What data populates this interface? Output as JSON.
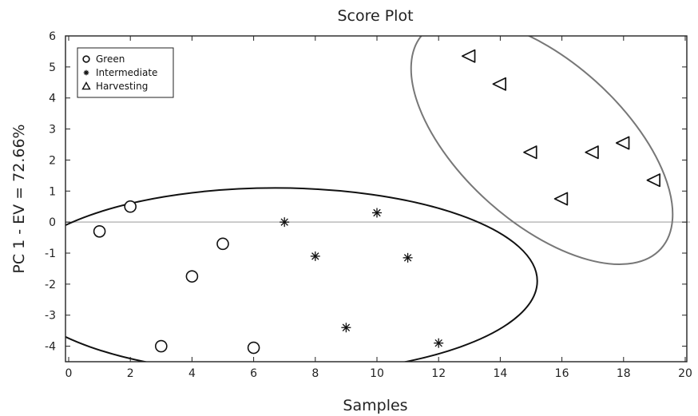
{
  "chart_data": {
    "type": "scatter",
    "title": "Score Plot",
    "xlabel": "Samples",
    "ylabel": "PC 1 - EV = 72.66%",
    "xlim": [
      0,
      20
    ],
    "ylim": [
      -4.5,
      6
    ],
    "xticks": [
      0,
      2,
      4,
      6,
      8,
      10,
      12,
      14,
      16,
      18,
      20
    ],
    "yticks": [
      6,
      5,
      4,
      3,
      2,
      1,
      0,
      -1,
      -2,
      -3,
      -4
    ],
    "ytick_labels": [
      "6",
      "5",
      "4",
      "3",
      "2",
      "1",
      "0",
      "-1",
      "-2",
      "-3",
      "-4"
    ],
    "zero_line": true,
    "grid": false,
    "legend_position": "top-left",
    "series": [
      {
        "name": "Green",
        "marker": "circle",
        "x": [
          1,
          2,
          3,
          4,
          5,
          6
        ],
        "y": [
          -0.3,
          0.5,
          -4.0,
          -1.75,
          -0.7,
          -4.05
        ]
      },
      {
        "name": "Intermediate",
        "marker": "star",
        "x": [
          7,
          8,
          9,
          10,
          11,
          12
        ],
        "y": [
          0.0,
          -1.1,
          -3.4,
          0.3,
          -1.15,
          -3.9
        ]
      },
      {
        "name": "Harvesting",
        "marker": "triangle-left",
        "x": [
          13,
          14,
          15,
          16,
          17,
          18,
          19
        ],
        "y": [
          5.35,
          4.45,
          2.25,
          0.75,
          2.25,
          2.55,
          1.35
        ]
      }
    ],
    "ellipses": [
      {
        "group": "Green + Intermediate",
        "cx": 6.7,
        "cy": -1.9,
        "rx": 8.5,
        "ry": 3.0,
        "angle": 0,
        "color": "#111111"
      },
      {
        "group": "Harvesting",
        "cx": 15.35,
        "cy": 2.6,
        "rx": 5.2,
        "ry": 2.6,
        "angle": 42,
        "color": "#777777"
      }
    ]
  },
  "colors": {
    "axis": "#222222",
    "marker": "#111111",
    "zero_line": "#bbbbbb"
  }
}
